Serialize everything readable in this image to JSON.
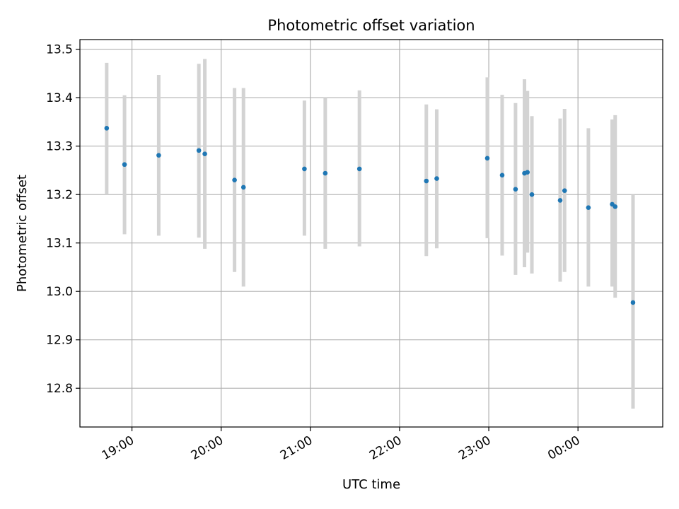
{
  "chart_data": {
    "type": "scatter",
    "title": "Photometric offset variation",
    "xlabel": "UTC time",
    "ylabel": "Photometric offset",
    "x_axis": {
      "kind": "time",
      "range": [
        "18:25",
        "00:57"
      ],
      "ticks": [
        "19:00",
        "20:00",
        "21:00",
        "22:00",
        "23:00",
        "00:00"
      ]
    },
    "ylim": [
      12.72,
      13.52
    ],
    "y_ticks": [
      "12.8",
      "12.9",
      "13.0",
      "13.1",
      "13.2",
      "13.3",
      "13.4",
      "13.5"
    ],
    "grid": true,
    "legend": "none",
    "colors": {
      "points": "#1f77b4",
      "errorbars": "#d3d3d3",
      "grid": "#b0b0b0"
    },
    "series": [
      {
        "points": [
          {
            "time": "18:43",
            "y": 13.337,
            "ylow": 13.2,
            "yhigh": 13.472
          },
          {
            "time": "18:55",
            "y": 13.262,
            "ylow": 13.118,
            "yhigh": 13.405
          },
          {
            "time": "19:18",
            "y": 13.281,
            "ylow": 13.115,
            "yhigh": 13.447
          },
          {
            "time": "19:45",
            "y": 13.291,
            "ylow": 13.111,
            "yhigh": 13.47
          },
          {
            "time": "19:49",
            "y": 13.284,
            "ylow": 13.088,
            "yhigh": 13.48
          },
          {
            "time": "20:09",
            "y": 13.23,
            "ylow": 13.04,
            "yhigh": 13.42
          },
          {
            "time": "20:15",
            "y": 13.215,
            "ylow": 13.01,
            "yhigh": 13.42
          },
          {
            "time": "20:56",
            "y": 13.253,
            "ylow": 13.115,
            "yhigh": 13.394
          },
          {
            "time": "21:10",
            "y": 13.244,
            "ylow": 13.088,
            "yhigh": 13.4
          },
          {
            "time": "21:33",
            "y": 13.253,
            "ylow": 13.093,
            "yhigh": 13.415
          },
          {
            "time": "22:18",
            "y": 13.228,
            "ylow": 13.073,
            "yhigh": 13.386
          },
          {
            "time": "22:25",
            "y": 13.233,
            "ylow": 13.089,
            "yhigh": 13.376
          },
          {
            "time": "22:59",
            "y": 13.275,
            "ylow": 13.11,
            "yhigh": 13.442
          },
          {
            "time": "23:09",
            "y": 13.24,
            "ylow": 13.074,
            "yhigh": 13.406
          },
          {
            "time": "23:18",
            "y": 13.211,
            "ylow": 13.034,
            "yhigh": 13.389
          },
          {
            "time": "23:24",
            "y": 13.244,
            "ylow": 13.05,
            "yhigh": 13.438
          },
          {
            "time": "23:26",
            "y": 13.246,
            "ylow": 13.08,
            "yhigh": 13.414
          },
          {
            "time": "23:29",
            "y": 13.2,
            "ylow": 13.037,
            "yhigh": 13.362
          },
          {
            "time": "23:48",
            "y": 13.188,
            "ylow": 13.02,
            "yhigh": 13.357
          },
          {
            "time": "23:51",
            "y": 13.208,
            "ylow": 13.04,
            "yhigh": 13.377
          },
          {
            "time": "00:07",
            "y": 13.173,
            "ylow": 13.01,
            "yhigh": 13.337
          },
          {
            "time": "00:23",
            "y": 13.18,
            "ylow": 13.01,
            "yhigh": 13.355
          },
          {
            "time": "00:25",
            "y": 13.175,
            "ylow": 12.987,
            "yhigh": 13.364
          },
          {
            "time": "00:37",
            "y": 12.977,
            "ylow": 12.758,
            "yhigh": 13.2
          }
        ]
      }
    ]
  }
}
